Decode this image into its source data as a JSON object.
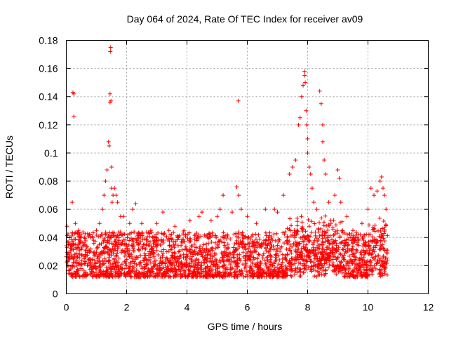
{
  "chart_data": {
    "type": "scatter",
    "title": "Day 064 of 2024, Rate Of TEC Index for receiver av09",
    "xlabel": "GPS time / hours",
    "ylabel": "ROTI / TECUs",
    "xlim": [
      0,
      12
    ],
    "ylim": [
      0,
      0.18
    ],
    "xticks": [
      "0",
      "2",
      "4",
      "6",
      "8",
      "10",
      "12"
    ],
    "yticks": [
      "0",
      "0.02",
      "0.04",
      "0.06",
      "0.08",
      "0.1",
      "0.12",
      "0.14",
      "0.16",
      "0.18"
    ],
    "grid": true,
    "marker": "+",
    "color": "#ff0000",
    "series": [
      {
        "name": "ROTI",
        "note": "dense cloud of several thousand points from 0 to 10.65 h, mostly between 0.005 and 0.05 TECU/s; listed below are the distinct upper envelope / spike values",
        "x": [
          0.02,
          0.05,
          0.1,
          0.2,
          0.22,
          0.25,
          0.25,
          0.3,
          0.4,
          0.6,
          0.8,
          1.0,
          1.1,
          1.2,
          1.25,
          1.3,
          1.35,
          1.4,
          1.42,
          1.45,
          1.45,
          1.46,
          1.47,
          1.48,
          1.5,
          1.5,
          1.52,
          1.55,
          1.6,
          1.65,
          1.7,
          1.8,
          1.9,
          2.1,
          2.2,
          2.3,
          2.5,
          2.8,
          3.0,
          3.2,
          3.4,
          3.6,
          3.9,
          4.1,
          4.4,
          4.5,
          4.8,
          5.0,
          5.1,
          5.2,
          5.5,
          5.65,
          5.7,
          5.72,
          5.8,
          6.0,
          6.3,
          6.6,
          6.9,
          7.0,
          7.2,
          7.4,
          7.5,
          7.6,
          7.7,
          7.75,
          7.8,
          7.85,
          7.9,
          7.9,
          7.92,
          7.95,
          7.97,
          8.0,
          8.0,
          8.05,
          8.1,
          8.15,
          8.2,
          8.3,
          8.4,
          8.45,
          8.5,
          8.5,
          8.55,
          8.6,
          8.7,
          8.9,
          9.0,
          9.05,
          9.1,
          9.3,
          9.5,
          9.8,
          10.0,
          10.1,
          10.2,
          10.3,
          10.4,
          10.45,
          10.5,
          10.55,
          10.6
        ],
        "y": [
          0.048,
          0.028,
          0.04,
          0.065,
          0.143,
          0.142,
          0.126,
          0.05,
          0.045,
          0.04,
          0.04,
          0.045,
          0.05,
          0.06,
          0.07,
          0.08,
          0.088,
          0.108,
          0.105,
          0.136,
          0.142,
          0.172,
          0.175,
          0.137,
          0.09,
          0.075,
          0.065,
          0.07,
          0.075,
          0.07,
          0.065,
          0.055,
          0.055,
          0.05,
          0.06,
          0.064,
          0.05,
          0.045,
          0.05,
          0.058,
          0.045,
          0.048,
          0.045,
          0.052,
          0.055,
          0.058,
          0.052,
          0.055,
          0.06,
          0.07,
          0.058,
          0.076,
          0.137,
          0.07,
          0.06,
          0.055,
          0.05,
          0.06,
          0.06,
          0.058,
          0.07,
          0.085,
          0.09,
          0.095,
          0.12,
          0.125,
          0.14,
          0.148,
          0.155,
          0.158,
          0.15,
          0.13,
          0.12,
          0.11,
          0.1,
          0.09,
          0.085,
          0.075,
          0.065,
          0.06,
          0.144,
          0.135,
          0.12,
          0.108,
          0.095,
          0.085,
          0.065,
          0.07,
          0.088,
          0.082,
          0.065,
          0.055,
          0.045,
          0.05,
          0.06,
          0.075,
          0.07,
          0.073,
          0.08,
          0.083,
          0.075,
          0.07,
          0.06
        ]
      }
    ]
  }
}
